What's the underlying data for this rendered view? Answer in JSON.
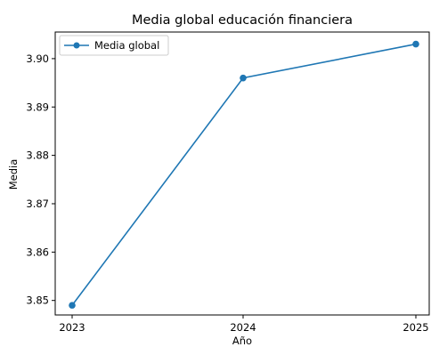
{
  "chart_data": {
    "type": "line",
    "title": "Media global educación financiera",
    "xlabel": "Año",
    "ylabel": "Media",
    "categories": [
      "2023",
      "2024",
      "2025"
    ],
    "series": [
      {
        "name": "Media global",
        "values": [
          3.849,
          3.896,
          3.903
        ],
        "color": "#1f77b4",
        "marker": "circle"
      }
    ],
    "ylim": [
      3.847,
      3.9055
    ],
    "yticks": [
      3.85,
      3.86,
      3.87,
      3.88,
      3.89,
      3.9
    ],
    "ytick_labels": [
      "3.85",
      "3.86",
      "3.87",
      "3.88",
      "3.89",
      "3.90"
    ],
    "grid": false,
    "legend_position": "upper-left"
  }
}
